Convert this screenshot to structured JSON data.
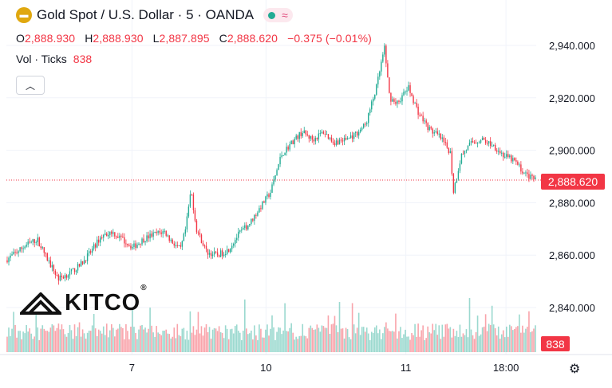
{
  "header": {
    "title": "Gold Spot / U.S. Dollar · 5 · OANDA",
    "badge_icon": "gold-bars-icon",
    "indicator_icons": [
      "green-dot-icon",
      "wave-icon"
    ]
  },
  "ohlc": {
    "o_label": "O",
    "o_value": "2,888.930",
    "h_label": "H",
    "h_value": "2,888.930",
    "l_label": "L",
    "l_value": "2,887.895",
    "c_label": "C",
    "c_value": "2,888.620",
    "change": "−0.375 (−0.01%)"
  },
  "volume_legend": {
    "label": "Vol · Ticks",
    "value": "838"
  },
  "watermark": {
    "text": "KITCO",
    "reg": "®"
  },
  "price_tag": "2,888.620",
  "volume_tag": "838",
  "colors": {
    "up": "#22ab94",
    "down": "#f23645",
    "grid": "#f0f3fa",
    "text": "#131722"
  },
  "chart_data": {
    "type": "candlestick",
    "symbol": "Gold Spot / U.S. Dollar",
    "interval": "5",
    "y_ticks": [
      "2,940.000",
      "2,920.000",
      "2,900.000",
      "2,880.000",
      "2,860.000",
      "2,840.000"
    ],
    "y_tick_values": [
      2940,
      2920,
      2900,
      2880,
      2860,
      2840
    ],
    "ylim": [
      2834.5,
      2944.5
    ],
    "x_ticks": [
      "7",
      "10",
      "11",
      "18:00"
    ],
    "x_tick_positions": [
      0.237,
      0.49,
      0.754,
      0.943
    ],
    "last_price": 2888.62,
    "last_volume": 838,
    "price_path": [
      [
        0.0,
        2858
      ],
      [
        0.02,
        2861
      ],
      [
        0.04,
        2864
      ],
      [
        0.06,
        2866
      ],
      [
        0.08,
        2858
      ],
      [
        0.1,
        2851
      ],
      [
        0.12,
        2853
      ],
      [
        0.14,
        2856
      ],
      [
        0.16,
        2861
      ],
      [
        0.18,
        2867
      ],
      [
        0.2,
        2869
      ],
      [
        0.22,
        2866
      ],
      [
        0.24,
        2863
      ],
      [
        0.26,
        2866
      ],
      [
        0.28,
        2868
      ],
      [
        0.3,
        2869
      ],
      [
        0.31,
        2866
      ],
      [
        0.33,
        2862
      ],
      [
        0.34,
        2870
      ],
      [
        0.35,
        2885
      ],
      [
        0.36,
        2870
      ],
      [
        0.38,
        2861
      ],
      [
        0.4,
        2860
      ],
      [
        0.42,
        2862
      ],
      [
        0.44,
        2868
      ],
      [
        0.46,
        2872
      ],
      [
        0.48,
        2878
      ],
      [
        0.5,
        2884
      ],
      [
        0.52,
        2898
      ],
      [
        0.54,
        2903
      ],
      [
        0.56,
        2907
      ],
      [
        0.58,
        2904
      ],
      [
        0.6,
        2907
      ],
      [
        0.62,
        2903
      ],
      [
        0.64,
        2904
      ],
      [
        0.66,
        2906
      ],
      [
        0.68,
        2910
      ],
      [
        0.7,
        2924
      ],
      [
        0.715,
        2939
      ],
      [
        0.725,
        2920
      ],
      [
        0.74,
        2918
      ],
      [
        0.76,
        2924
      ],
      [
        0.78,
        2914
      ],
      [
        0.8,
        2908
      ],
      [
        0.82,
        2905
      ],
      [
        0.84,
        2899
      ],
      [
        0.845,
        2884
      ],
      [
        0.86,
        2898
      ],
      [
        0.88,
        2903
      ],
      [
        0.9,
        2904
      ],
      [
        0.92,
        2902
      ],
      [
        0.94,
        2898
      ],
      [
        0.96,
        2896
      ],
      [
        0.98,
        2891
      ],
      [
        1.0,
        2888.6
      ]
    ]
  }
}
